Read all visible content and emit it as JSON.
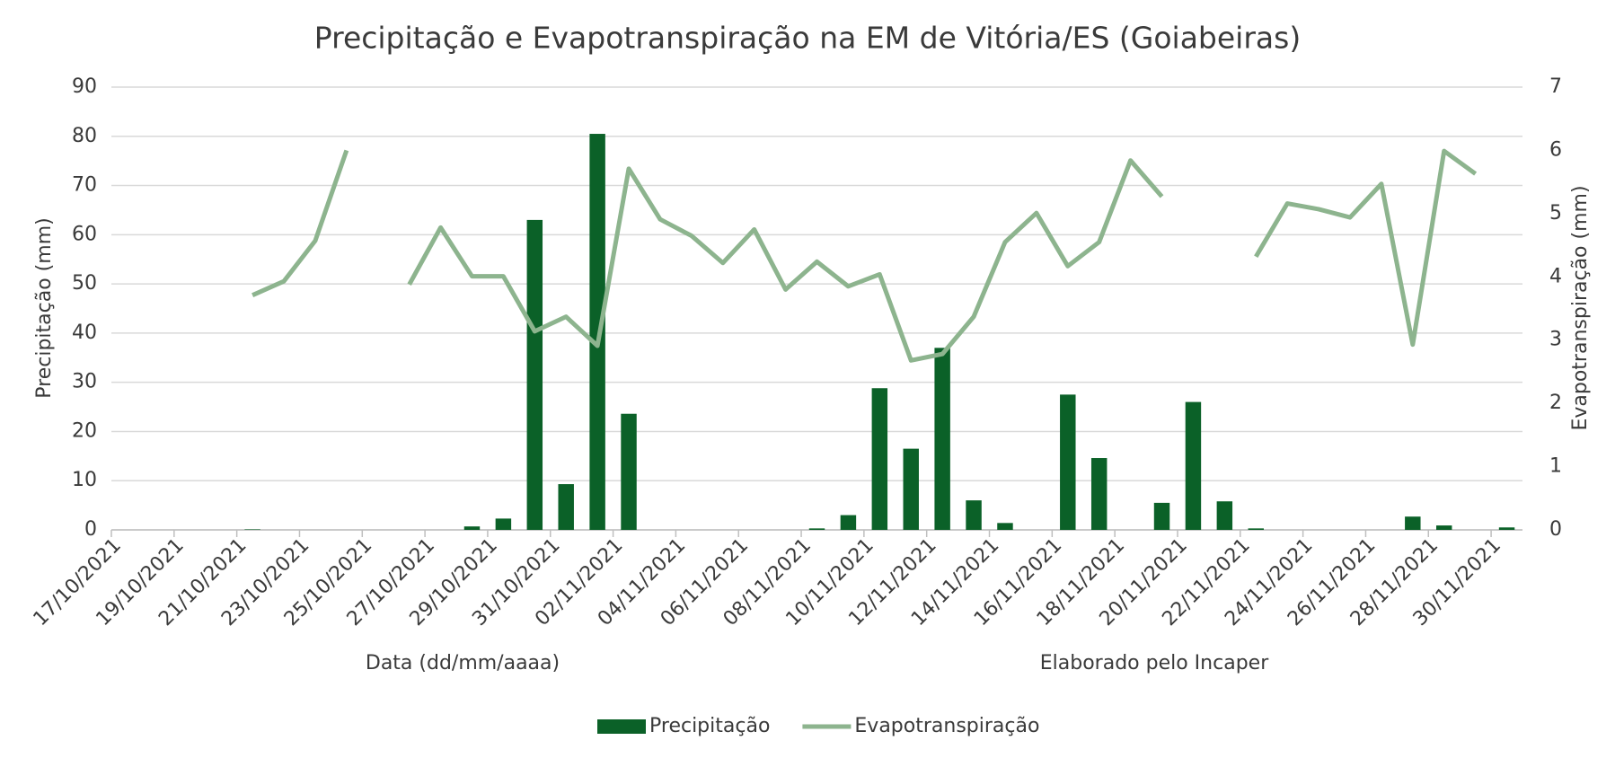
{
  "chart_data": {
    "type": "bar",
    "title": "Precipitação e Evapotranspiração na EM de Vitória/ES (Goiabeiras)",
    "x_label": "Data (dd/mm/aaaa)",
    "y_label": "Precipitação (mm)",
    "y2_label": "Evapotranspiração (mm)",
    "note": "Elaborado pelo Incaper",
    "categories": [
      "17/10/2021",
      null,
      "19/10/2021",
      null,
      "21/10/2021",
      null,
      "23/10/2021",
      null,
      "25/10/2021",
      null,
      "27/10/2021",
      null,
      "29/10/2021",
      null,
      "31/10/2021",
      null,
      "02/11/2021",
      null,
      "04/11/2021",
      null,
      "06/11/2021",
      null,
      "08/11/2021",
      null,
      "10/11/2021",
      null,
      "12/11/2021",
      null,
      "14/11/2021",
      null,
      "16/11/2021",
      null,
      "18/11/2021",
      null,
      "20/11/2021",
      null,
      "22/11/2021",
      null,
      "24/11/2021",
      null,
      "26/11/2021",
      null,
      "28/11/2021",
      null,
      "30/11/2021"
    ],
    "series": [
      {
        "name": "Precipitação",
        "type": "bar",
        "color": "#0b6128",
        "values": [
          0,
          0,
          0,
          0,
          0.1,
          0,
          0,
          0,
          0,
          0,
          0,
          0.7,
          2.3,
          63,
          9.3,
          80.5,
          23.6,
          0,
          0,
          0,
          0,
          0,
          0.3,
          3.0,
          28.8,
          16.5,
          37,
          6.0,
          1.4,
          0,
          27.5,
          14.6,
          0,
          5.5,
          26,
          5.8,
          0.3,
          0,
          0,
          0,
          0,
          2.7,
          0.9,
          0,
          0.5
        ]
      },
      {
        "name": "Evapotranspiração",
        "type": "line",
        "axis": "y2",
        "color": "#8db48e",
        "values": [
          null,
          null,
          null,
          null,
          3.71,
          3.93,
          4.57,
          6.0,
          null,
          3.88,
          4.78,
          4.01,
          4.01,
          3.14,
          3.37,
          2.91,
          5.71,
          4.91,
          4.65,
          4.22,
          4.75,
          3.8,
          4.24,
          3.85,
          4.04,
          2.68,
          2.78,
          3.37,
          4.55,
          5.01,
          4.17,
          4.55,
          5.84,
          5.27,
          null,
          null,
          4.32,
          5.16,
          5.07,
          4.94,
          5.47,
          2.93,
          5.99,
          5.63,
          null
        ]
      }
    ],
    "ylim": [
      0,
      90
    ],
    "yticks": [
      0,
      10,
      20,
      30,
      40,
      50,
      60,
      70,
      80,
      90
    ],
    "y2lim": [
      0,
      7
    ],
    "y2ticks": [
      0,
      1,
      2,
      3,
      4,
      5,
      6,
      7
    ],
    "grid": true,
    "legend": "bottom"
  }
}
